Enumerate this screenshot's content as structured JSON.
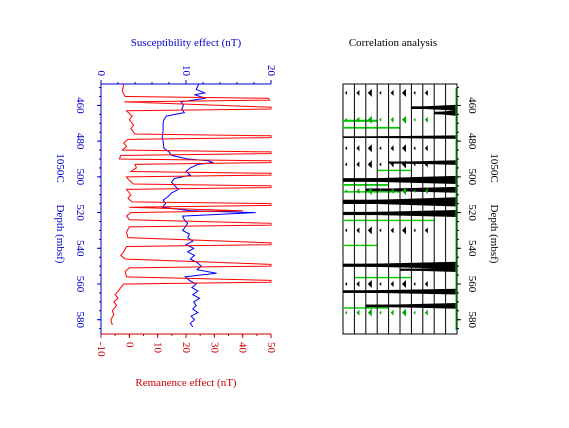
{
  "chart_data": [
    {
      "type": "line",
      "title": "Susceptibility effect (nT)",
      "top_axis": {
        "label": "Susceptibility effect (nT)",
        "range": [
          0,
          20
        ],
        "ticks": [
          "0",
          "10",
          "20"
        ],
        "color": "#0000cc"
      },
      "bottom_axis": {
        "label": "Remanence effect (nT)",
        "range": [
          -10,
          50
        ],
        "ticks": [
          "-10",
          "0",
          "10",
          "20",
          "30",
          "40",
          "50"
        ],
        "color": "#cc0000"
      },
      "depth_axis": {
        "label_site": "1050C",
        "label": "Depth (mbsf)",
        "range": [
          448,
          588
        ],
        "ticks": [
          "460",
          "480",
          "500",
          "520",
          "540",
          "560",
          "580"
        ],
        "color": "#0000cc"
      },
      "series": [
        {
          "key": "susceptibility",
          "color": "#0000ff",
          "axis": "top",
          "points": [
            [
              448,
              11.5
            ],
            [
              451,
              11.2
            ],
            [
              453,
              12.2
            ],
            [
              454,
              11.0
            ],
            [
              456,
              12.3
            ],
            [
              458,
              9.4
            ],
            [
              460,
              9.7
            ],
            [
              462,
              9.5
            ],
            [
              464,
              9.8
            ],
            [
              466,
              7.7
            ],
            [
              468,
              7.4
            ],
            [
              470,
              7.3
            ],
            [
              474,
              7.3
            ],
            [
              478,
              7.2
            ],
            [
              480,
              7.3
            ],
            [
              484,
              7.4
            ],
            [
              486,
              8.0
            ],
            [
              488,
              8.3
            ],
            [
              490,
              10.2
            ],
            [
              491,
              12.6
            ],
            [
              492,
              13.2
            ],
            [
              493,
              11.4
            ],
            [
              495,
              10.5
            ],
            [
              497,
              10.0
            ],
            [
              499,
              10.5
            ],
            [
              501,
              8.6
            ],
            [
              503,
              8.3
            ],
            [
              505,
              8.7
            ],
            [
              507,
              9.1
            ],
            [
              509,
              8.3
            ],
            [
              511,
              7.9
            ],
            [
              513,
              7.3
            ],
            [
              515,
              7.6
            ],
            [
              517,
              7.2
            ],
            [
              519,
              10.5
            ],
            [
              520,
              18.2
            ],
            [
              522,
              9.6
            ],
            [
              524,
              9.8
            ],
            [
              526,
              10.2
            ],
            [
              528,
              9.9
            ],
            [
              530,
              9.6
            ],
            [
              532,
              10.4
            ],
            [
              534,
              10.2
            ],
            [
              536,
              10.8
            ],
            [
              538,
              10.0
            ],
            [
              540,
              10.9
            ],
            [
              542,
              10.2
            ],
            [
              544,
              11.0
            ],
            [
              546,
              10.5
            ],
            [
              548,
              11.3
            ],
            [
              550,
              11.8
            ],
            [
              552,
              11.3
            ],
            [
              554,
              13.6
            ],
            [
              555,
              11.6
            ],
            [
              556,
              9.9
            ],
            [
              558,
              10.4
            ],
            [
              560,
              11.2
            ],
            [
              562,
              10.7
            ],
            [
              564,
              11.4
            ],
            [
              566,
              10.8
            ],
            [
              568,
              11.6
            ],
            [
              570,
              10.9
            ],
            [
              572,
              11.2
            ],
            [
              574,
              10.8
            ],
            [
              576,
              11.4
            ],
            [
              578,
              10.6
            ],
            [
              580,
              11.0
            ],
            [
              582,
              10.5
            ],
            [
              584,
              10.8
            ]
          ]
        },
        {
          "key": "remanence",
          "color": "#ff0000",
          "axis": "bottom",
          "points": [
            [
              448,
              -2.0
            ],
            [
              452,
              -2.5
            ],
            [
              455,
              -1.5
            ],
            [
              456,
              49.0
            ],
            [
              457,
              49.5
            ],
            [
              458,
              -1.8
            ],
            [
              461,
              50
            ],
            [
              462,
              50
            ],
            [
              463,
              -1.0
            ],
            [
              466,
              1.0
            ],
            [
              468,
              0.0
            ],
            [
              471,
              1.5
            ],
            [
              473,
              0.6
            ],
            [
              476,
              2.0
            ],
            [
              477,
              50
            ],
            [
              478,
              50
            ],
            [
              479,
              -0.5
            ],
            [
              481,
              -2.0
            ],
            [
              483,
              -1.0
            ],
            [
              485,
              -2.5
            ],
            [
              486,
              50
            ],
            [
              487,
              50
            ],
            [
              488,
              -3.0
            ],
            [
              490,
              -3.5
            ],
            [
              491,
              50
            ],
            [
              492,
              50
            ],
            [
              493,
              2.0
            ],
            [
              495,
              2.5
            ],
            [
              497,
              0.5
            ],
            [
              498,
              50
            ],
            [
              499,
              50
            ],
            [
              500,
              -1.0
            ],
            [
              502,
              0.0
            ],
            [
              504,
              1.5
            ],
            [
              505,
              50
            ],
            [
              506,
              50
            ],
            [
              507,
              -1.0
            ],
            [
              510,
              0.5
            ],
            [
              512,
              -0.5
            ],
            [
              514,
              1.0
            ],
            [
              515,
              50
            ],
            [
              516,
              50
            ],
            [
              517,
              0.0
            ],
            [
              519,
              40.0
            ],
            [
              520,
              0.5
            ],
            [
              522,
              -1.0
            ],
            [
              524,
              0.0
            ],
            [
              526,
              50
            ],
            [
              527,
              50
            ],
            [
              528,
              0.0
            ],
            [
              531,
              -1.0
            ],
            [
              534,
              -0.5
            ],
            [
              537,
              50
            ],
            [
              538,
              50
            ],
            [
              539,
              -1.0
            ],
            [
              542,
              -2.0
            ],
            [
              544,
              -3.0
            ],
            [
              546,
              -1.5
            ],
            [
              549,
              50
            ],
            [
              550,
              50
            ],
            [
              551,
              0.0
            ],
            [
              553,
              -1.5
            ],
            [
              556,
              -1.0
            ],
            [
              558,
              50
            ],
            [
              559,
              50
            ],
            [
              560,
              -2.0
            ],
            [
              563,
              -3.5
            ],
            [
              566,
              -5.0
            ],
            [
              568,
              -4.0
            ],
            [
              570,
              -5.5
            ],
            [
              572,
              -4.5
            ],
            [
              575,
              -6.0
            ],
            [
              577,
              -5.5
            ],
            [
              580,
              -6.5
            ],
            [
              583,
              -6.0
            ]
          ]
        }
      ]
    },
    {
      "type": "heatmap",
      "title": "Correlation analysis",
      "depth_axis": {
        "label_site": "1050C",
        "label": "Depth (mbsf)",
        "range": [
          448,
          588
        ],
        "ticks": [
          "460",
          "480",
          "500",
          "520",
          "540",
          "560",
          "580"
        ],
        "color": "#000000"
      },
      "columns": 10,
      "black_bands": [
        {
          "depth": 460,
          "thickness": 2.5,
          "from_col": 6
        },
        {
          "depth": 463,
          "thickness": 2.5,
          "from_col": 8
        },
        {
          "depth": 477,
          "thickness": 1.5,
          "from_col": 0
        },
        {
          "depth": 491,
          "thickness": 2.0,
          "from_col": 4
        },
        {
          "depth": 500,
          "thickness": 3.5,
          "from_col": 0
        },
        {
          "depth": 506,
          "thickness": 2.5,
          "from_col": 2
        },
        {
          "depth": 512,
          "thickness": 4.0,
          "from_col": 0
        },
        {
          "depth": 519,
          "thickness": 3.0,
          "from_col": 0
        },
        {
          "depth": 548,
          "thickness": 3.0,
          "from_col": 0
        },
        {
          "depth": 551,
          "thickness": 2.0,
          "from_col": 5
        },
        {
          "depth": 563,
          "thickness": 2.5,
          "from_col": 0
        },
        {
          "depth": 571,
          "thickness": 2.5,
          "from_col": 2
        }
      ],
      "green_bands": [
        {
          "depth": 468,
          "thickness": 1.2,
          "from_col": 0,
          "to_col": 3
        },
        {
          "depth": 472,
          "thickness": 1.0,
          "from_col": 0,
          "to_col": 5
        },
        {
          "depth": 496,
          "thickness": 0.8,
          "from_col": 3,
          "to_col": 6
        },
        {
          "depth": 504,
          "thickness": 1.0,
          "from_col": 0,
          "to_col": 4
        },
        {
          "depth": 508,
          "thickness": 0.8,
          "from_col": 0,
          "to_col": 5
        },
        {
          "depth": 524,
          "thickness": 0.8,
          "from_col": 0,
          "to_col": 8
        },
        {
          "depth": 538,
          "thickness": 0.8,
          "from_col": 0,
          "to_col": 3
        },
        {
          "depth": 556,
          "thickness": 0.8,
          "from_col": 1,
          "to_col": 6
        },
        {
          "depth": 573,
          "thickness": 0.8,
          "from_col": 0,
          "to_col": 4
        }
      ]
    }
  ]
}
